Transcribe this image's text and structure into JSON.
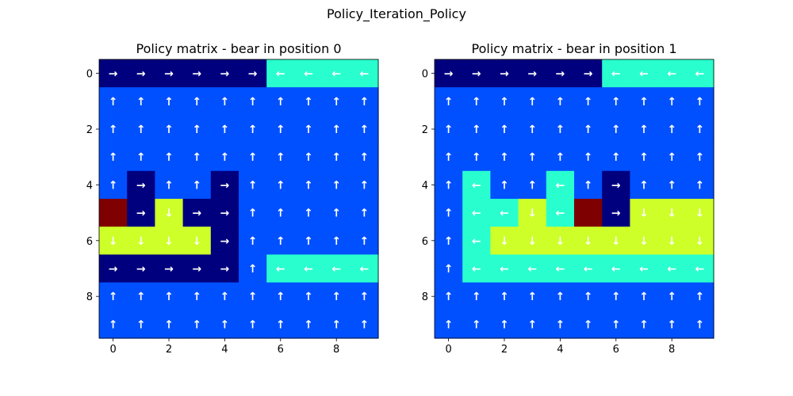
{
  "figure": {
    "suptitle": "Policy_Iteration_Policy"
  },
  "colors": {
    "0": "#00007f",
    "1": "#0050ff",
    "2": "#29ffce",
    "3": "#ceff29",
    "4": "#7f0000",
    "arrow": "#ffffff"
  },
  "chart_data": [
    {
      "type": "heatmap",
      "title": "Policy matrix - bear in position 0",
      "xlabel": "",
      "ylabel": "",
      "xlim": [
        -0.5,
        9.5
      ],
      "ylim": [
        9.5,
        -0.5
      ],
      "xticks": [
        0,
        2,
        4,
        6,
        8
      ],
      "yticks": [
        0,
        2,
        4,
        6,
        8
      ],
      "grid": false,
      "values": [
        [
          "→",
          "→",
          "→",
          "→",
          "→",
          "→",
          "←",
          "←",
          "←",
          "←"
        ],
        [
          "↑",
          "↑",
          "↑",
          "↑",
          "↑",
          "↑",
          "↑",
          "↑",
          "↑",
          "↑"
        ],
        [
          "↑",
          "↑",
          "↑",
          "↑",
          "↑",
          "↑",
          "↑",
          "↑",
          "↑",
          "↑"
        ],
        [
          "↑",
          "↑",
          "↑",
          "↑",
          "↑",
          "↑",
          "↑",
          "↑",
          "↑",
          "↑"
        ],
        [
          "↑",
          "→",
          "↑",
          "↑",
          "→",
          "↑",
          "↑",
          "↑",
          "↑",
          "↑"
        ],
        [
          "",
          "→",
          "↓",
          "→",
          "→",
          "↑",
          "↑",
          "↑",
          "↑",
          "↑"
        ],
        [
          "↓",
          "↓",
          "↓",
          "↓",
          "→",
          "↑",
          "↑",
          "↑",
          "↑",
          "↑"
        ],
        [
          "→",
          "→",
          "→",
          "→",
          "→",
          "↑",
          "←",
          "←",
          "←",
          "←"
        ],
        [
          "↑",
          "↑",
          "↑",
          "↑",
          "↑",
          "↑",
          "↑",
          "↑",
          "↑",
          "↑"
        ],
        [
          "↑",
          "↑",
          "↑",
          "↑",
          "↑",
          "↑",
          "↑",
          "↑",
          "↑",
          "↑"
        ]
      ]
    },
    {
      "type": "heatmap",
      "title": "Policy matrix - bear in position 1",
      "xlabel": "",
      "ylabel": "",
      "xlim": [
        -0.5,
        9.5
      ],
      "ylim": [
        9.5,
        -0.5
      ],
      "xticks": [
        0,
        2,
        4,
        6,
        8
      ],
      "yticks": [
        0,
        2,
        4,
        6,
        8
      ],
      "grid": false,
      "values": [
        [
          "→",
          "→",
          "→",
          "→",
          "→",
          "→",
          "←",
          "←",
          "←",
          "←"
        ],
        [
          "↑",
          "↑",
          "↑",
          "↑",
          "↑",
          "↑",
          "↑",
          "↑",
          "↑",
          "↑"
        ],
        [
          "↑",
          "↑",
          "↑",
          "↑",
          "↑",
          "↑",
          "↑",
          "↑",
          "↑",
          "↑"
        ],
        [
          "↑",
          "↑",
          "↑",
          "↑",
          "↑",
          "↑",
          "↑",
          "↑",
          "↑",
          "↑"
        ],
        [
          "↑",
          "←",
          "↑",
          "↑",
          "←",
          "↑",
          "→",
          "↑",
          "↑",
          "↑"
        ],
        [
          "↑",
          "←",
          "←",
          "↓",
          "←",
          "",
          "→",
          "↓",
          "↓",
          "↓"
        ],
        [
          "↑",
          "←",
          "↓",
          "↓",
          "↓",
          "↓",
          "↓",
          "↓",
          "↓",
          "↓"
        ],
        [
          "↑",
          "←",
          "←",
          "←",
          "←",
          "←",
          "←",
          "←",
          "←",
          "←"
        ],
        [
          "↑",
          "↑",
          "↑",
          "↑",
          "↑",
          "↑",
          "↑",
          "↑",
          "↑",
          "↑"
        ],
        [
          "↑",
          "↑",
          "↑",
          "↑",
          "↑",
          "↑",
          "↑",
          "↑",
          "↑",
          "↑"
        ]
      ]
    }
  ]
}
